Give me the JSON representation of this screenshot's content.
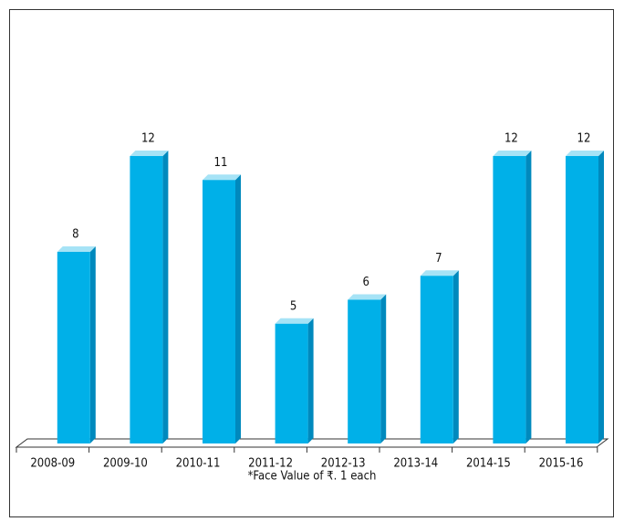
{
  "chart_data": {
    "type": "bar",
    "categories": [
      "2008-09",
      "2009-10",
      "2010-11",
      "2011-12",
      "2012-13",
      "2013-14",
      "2014-15",
      "2015-16"
    ],
    "values": [
      8,
      12,
      11,
      5,
      6,
      7,
      12,
      12
    ],
    "color": "#00b0e8",
    "footnote": "*Face Value of ₹. 1 each"
  }
}
